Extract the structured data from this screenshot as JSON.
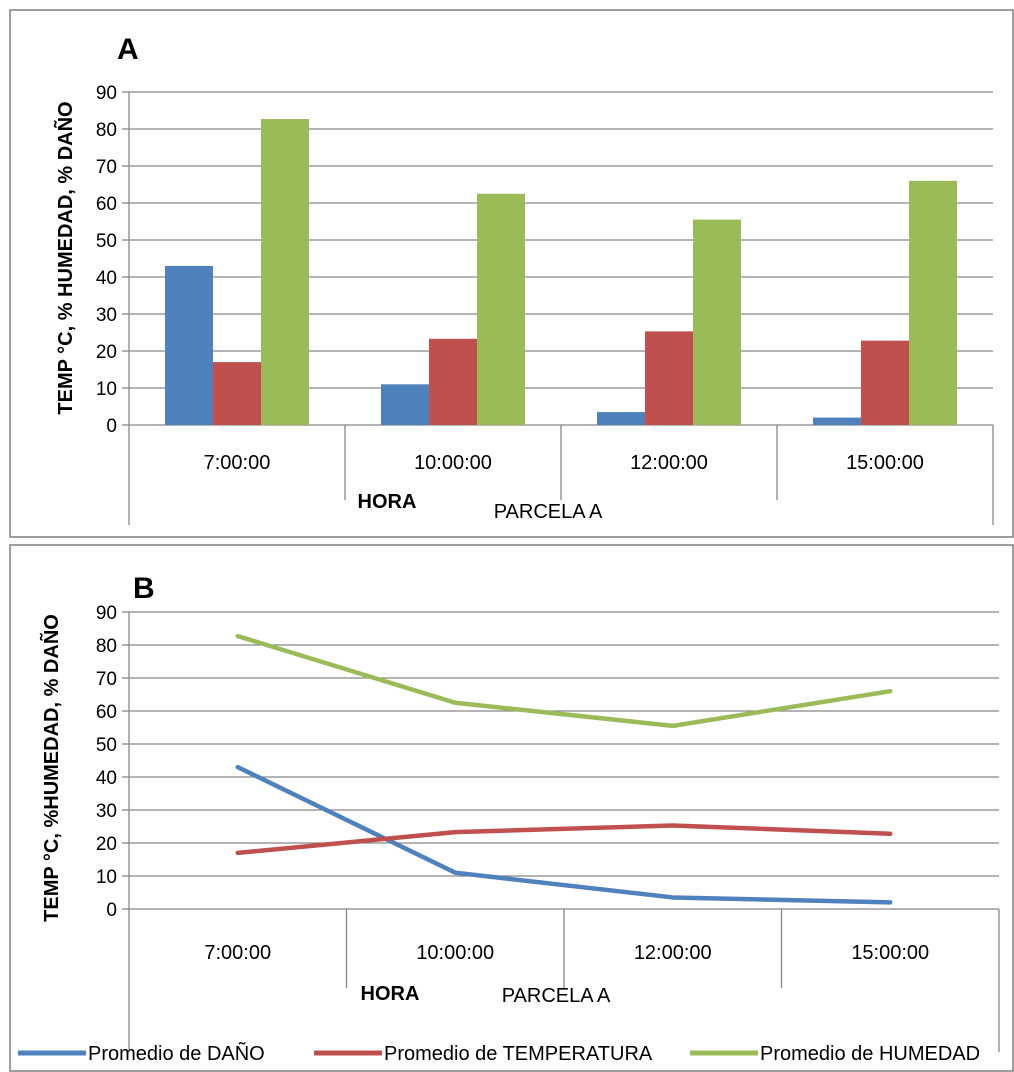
{
  "chart_data": [
    {
      "type": "bar",
      "panel_label": "A",
      "ylabel": "TEMP °C, % HUMEDAD, % DAÑO",
      "xlabel": "HORA",
      "group_label": "PARCELA A",
      "categories": [
        "7:00:00",
        "10:00:00",
        "12:00:00",
        "15:00:00"
      ],
      "ylim": [
        0,
        90
      ],
      "yticks": [
        0,
        10,
        20,
        30,
        40,
        50,
        60,
        70,
        80,
        90
      ],
      "grid": true,
      "series": [
        {
          "name": "Promedio de DAÑO",
          "color": "#4f81bd",
          "values": [
            43,
            11,
            3.5,
            2
          ]
        },
        {
          "name": "Promedio de TEMPERATURA",
          "color": "#c0504d",
          "values": [
            17,
            23.3,
            25.3,
            22.8
          ]
        },
        {
          "name": "Promedio de HUMEDAD",
          "color": "#9bbb59",
          "values": [
            82.7,
            62.5,
            55.5,
            66
          ]
        }
      ]
    },
    {
      "type": "line",
      "panel_label": "B",
      "ylabel": "TEMP °C,  %HUMEDAD,  % DAÑO",
      "xlabel": "HORA",
      "group_label": "PARCELA A",
      "categories": [
        "7:00:00",
        "10:00:00",
        "12:00:00",
        "15:00:00"
      ],
      "ylim": [
        0,
        90
      ],
      "yticks": [
        0,
        10,
        20,
        30,
        40,
        50,
        60,
        70,
        80,
        90
      ],
      "grid": true,
      "legend_position": "bottom",
      "series": [
        {
          "name": "Promedio de DAÑO",
          "color": "#4f81bd",
          "values": [
            43,
            11,
            3.5,
            2
          ]
        },
        {
          "name": "Promedio de TEMPERATURA",
          "color": "#c0504d",
          "values": [
            17,
            23.3,
            25.3,
            22.8
          ]
        },
        {
          "name": "Promedio de HUMEDAD",
          "color": "#9bbb59",
          "values": [
            82.7,
            62.5,
            55.5,
            66
          ]
        }
      ]
    }
  ]
}
